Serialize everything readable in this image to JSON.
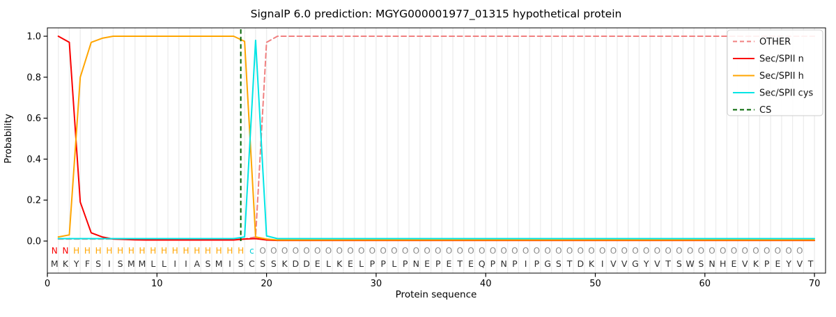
{
  "chart_data": {
    "type": "line",
    "title": "SignalP 6.0 prediction: MGYG000001977_01315 hypothetical protein",
    "xlabel": "Protein sequence",
    "ylabel": "Probability",
    "xlim": [
      0,
      71
    ],
    "ylim": [
      0,
      1.04
    ],
    "x_ticks": [
      "0",
      "10",
      "20",
      "30",
      "40",
      "50",
      "60",
      "70"
    ],
    "y_ticks": [
      "0.0",
      "0.2",
      "0.4",
      "0.6",
      "0.8",
      "1.0"
    ],
    "grid": "vertical light-gray line at every residue position",
    "legend_position": "upper right",
    "series": [
      {
        "name": "OTHER",
        "color": "#F08080",
        "dash": true,
        "values": [
          0.01,
          0.01,
          0.01,
          0.01,
          0.01,
          0.01,
          0.01,
          0.01,
          0.01,
          0.01,
          0.01,
          0.01,
          0.01,
          0.01,
          0.01,
          0.01,
          0.01,
          0.01,
          0.02,
          0.97,
          1,
          1,
          1,
          1,
          1,
          1,
          1,
          1,
          1,
          1,
          1,
          1,
          1,
          1,
          1,
          1,
          1,
          1,
          1,
          1,
          1,
          1,
          1,
          1,
          1,
          1,
          1,
          1,
          1,
          1,
          1,
          1,
          1,
          1,
          1,
          1,
          1,
          1,
          1,
          1,
          1,
          1,
          1,
          1,
          1,
          1,
          1,
          1,
          1,
          1
        ]
      },
      {
        "name": "Sec/SPII n",
        "color": "#FA0000",
        "dash": false,
        "values": [
          1,
          0.97,
          0.19,
          0.04,
          0.02,
          0.01,
          0.008,
          0.006,
          0.005,
          0.005,
          0.005,
          0.005,
          0.005,
          0.005,
          0.005,
          0.005,
          0.005,
          0.01,
          0.012,
          0.005,
          0.003,
          0.003,
          0.003,
          0.003,
          0.003,
          0.003,
          0.003,
          0.003,
          0.003,
          0.003,
          0.003,
          0.003,
          0.003,
          0.003,
          0.003,
          0.003,
          0.003,
          0.003,
          0.003,
          0.003,
          0.003,
          0.003,
          0.003,
          0.003,
          0.003,
          0.003,
          0.003,
          0.003,
          0.003,
          0.003,
          0.003,
          0.003,
          0.003,
          0.003,
          0.003,
          0.003,
          0.003,
          0.003,
          0.003,
          0.003,
          0.003,
          0.003,
          0.003,
          0.003,
          0.003,
          0.003,
          0.003,
          0.003,
          0.003,
          0.003
        ]
      },
      {
        "name": "Sec/SPII h",
        "color": "#FFA500",
        "dash": false,
        "values": [
          0.02,
          0.03,
          0.8,
          0.97,
          0.99,
          1,
          1,
          1,
          1,
          1,
          1,
          1,
          1,
          1,
          1,
          1,
          1,
          0.975,
          0.02,
          0.01,
          0.005,
          0.005,
          0.005,
          0.005,
          0.005,
          0.005,
          0.005,
          0.005,
          0.005,
          0.005,
          0.005,
          0.005,
          0.005,
          0.005,
          0.005,
          0.005,
          0.005,
          0.005,
          0.005,
          0.005,
          0.005,
          0.005,
          0.005,
          0.005,
          0.005,
          0.005,
          0.005,
          0.005,
          0.005,
          0.005,
          0.005,
          0.005,
          0.005,
          0.005,
          0.005,
          0.005,
          0.005,
          0.005,
          0.005,
          0.005,
          0.005,
          0.005,
          0.005,
          0.005,
          0.005,
          0.005,
          0.005,
          0.005,
          0.005,
          0.005
        ]
      },
      {
        "name": "Sec/SPII cys",
        "color": "#00E5E5",
        "dash": false,
        "values": [
          0.012,
          0.012,
          0.012,
          0.012,
          0.012,
          0.012,
          0.012,
          0.012,
          0.012,
          0.012,
          0.012,
          0.012,
          0.012,
          0.012,
          0.012,
          0.012,
          0.012,
          0.02,
          0.98,
          0.025,
          0.012,
          0.012,
          0.012,
          0.012,
          0.012,
          0.012,
          0.012,
          0.012,
          0.012,
          0.012,
          0.012,
          0.012,
          0.012,
          0.012,
          0.012,
          0.012,
          0.012,
          0.012,
          0.012,
          0.012,
          0.012,
          0.012,
          0.012,
          0.012,
          0.012,
          0.012,
          0.012,
          0.012,
          0.012,
          0.012,
          0.012,
          0.012,
          0.012,
          0.012,
          0.012,
          0.012,
          0.012,
          0.012,
          0.012,
          0.012,
          0.012,
          0.012,
          0.012,
          0.012,
          0.012,
          0.012,
          0.012,
          0.012,
          0.012,
          0.012
        ]
      }
    ],
    "cs_marker": {
      "name": "CS",
      "color": "#006400",
      "dash": true,
      "position": 18
    },
    "sequence": "MKYFSISMMLLIIASMISCSSKDDELKELPPLPNEPETEQPNPIPGSTDKIVVGYVTSWSNHEVKPEYVT",
    "state_labels": "NNHHHHHHHHHHHHHHHHcOOOOOOOOOOOOOOOOOOOOOOOOOOOOOOOOOOOOOOOOOOOOOOOOOO",
    "state_colors": {
      "N": "#FA0000",
      "H": "#FFA500",
      "c": "#00CDD6",
      "O": "#8A8A8A"
    },
    "residue_color": "#2E2E2E",
    "grid_color": "#ECECEC",
    "legend_border_color": "#CCCCCC"
  }
}
